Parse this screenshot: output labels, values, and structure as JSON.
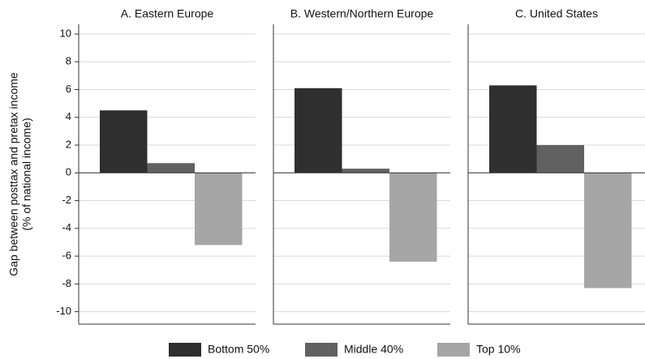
{
  "chart_data": {
    "type": "bar",
    "categories": [
      "A. Eastern Europe",
      "B. Western/Northern Europe",
      "C. United States"
    ],
    "ylabel": [
      "Gap between posttax and pretax income",
      "(% of national income)"
    ],
    "series": [
      {
        "name": "Bottom 50%",
        "color": "#2f2f2f",
        "values": [
          4.5,
          6.1,
          6.3
        ]
      },
      {
        "name": "Middle 40%",
        "color": "#616161",
        "values": [
          0.7,
          0.3,
          2.0
        ]
      },
      {
        "name": "Top 10%",
        "color": "#a6a6a6",
        "values": [
          -5.2,
          -6.4,
          -8.3
        ]
      }
    ],
    "ylim": [
      -10.9,
      10.7
    ],
    "yticks": [
      -10,
      -8,
      -6,
      -4,
      -2,
      0,
      2,
      4,
      6,
      8,
      10
    ],
    "grid": true,
    "legend": "bottom"
  }
}
